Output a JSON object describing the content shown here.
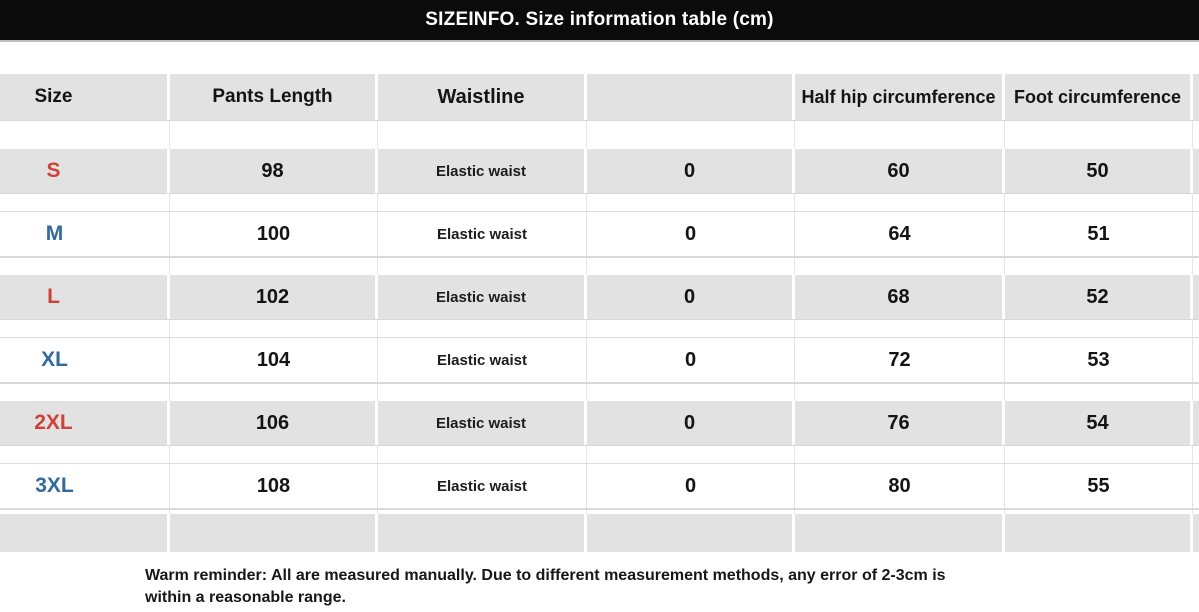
{
  "title": "SIZEINFO. Size information table (cm)",
  "table": {
    "columns": [
      "Size",
      "Pants Length",
      "Waistline",
      "",
      "Half hip circumference",
      "Foot circumference"
    ],
    "rows": [
      {
        "size": "S",
        "color": "red",
        "pants_length": "98",
        "waistline": "Elastic waist",
        "waist_cm": "0",
        "half_hip": "60",
        "foot": "50"
      },
      {
        "size": "M",
        "color": "blue",
        "pants_length": "100",
        "waistline": "Elastic waist",
        "waist_cm": "0",
        "half_hip": "64",
        "foot": "51"
      },
      {
        "size": "L",
        "color": "red",
        "pants_length": "102",
        "waistline": "Elastic waist",
        "waist_cm": "0",
        "half_hip": "68",
        "foot": "52"
      },
      {
        "size": "XL",
        "color": "blue",
        "pants_length": "104",
        "waistline": "Elastic waist",
        "waist_cm": "0",
        "half_hip": "72",
        "foot": "53"
      },
      {
        "size": "2XL",
        "color": "red",
        "pants_length": "106",
        "waistline": "Elastic waist",
        "waist_cm": "0",
        "half_hip": "76",
        "foot": "54"
      },
      {
        "size": "3XL",
        "color": "blue",
        "pants_length": "108",
        "waistline": "Elastic waist",
        "waist_cm": "0",
        "half_hip": "80",
        "foot": "55"
      }
    ]
  },
  "footer": {
    "note": "Warm reminder: All are measured manually. Due to different measurement methods, any error of 2-3cm is within a reasonable range."
  },
  "colors": {
    "size_red": "#cf4238",
    "size_blue": "#33699c",
    "row_shade": "#e2e2e2",
    "title_bar_bg": "#0b0b0b"
  }
}
